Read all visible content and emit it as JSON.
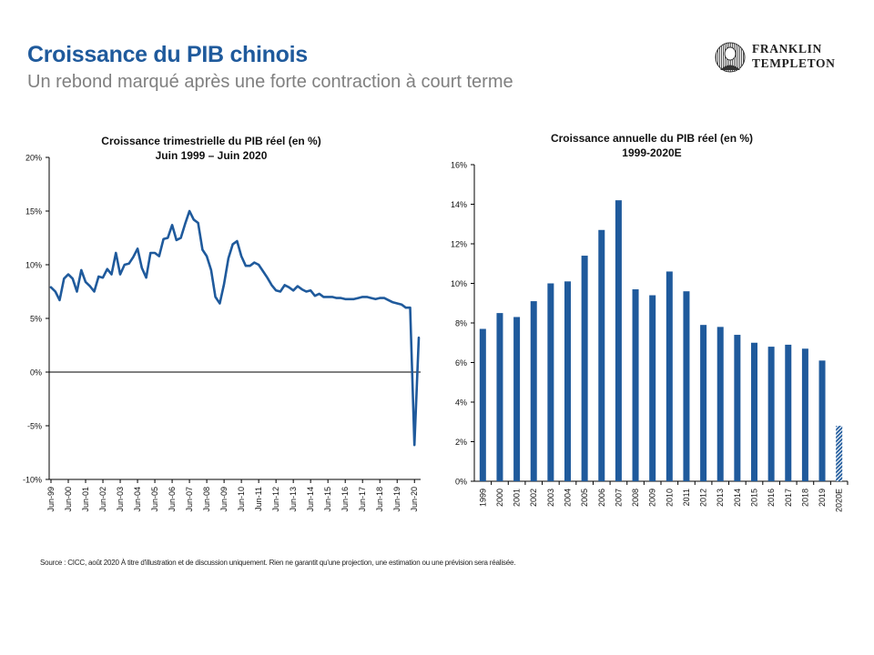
{
  "header": {
    "title": "Croissance du PIB chinois",
    "subtitle": "Un rebond marqué après une forte contraction à court terme",
    "logo_line1": "FRANKLIN",
    "logo_line2": "TEMPLETON",
    "title_color": "#1f5a9c"
  },
  "footer": {
    "source": "Source : CICC, août 2020 À titre d'illustration et de discussion uniquement. Rien ne garantit qu'une projection, une estimation ou une prévision sera réalisée."
  },
  "chart_data": [
    {
      "type": "line",
      "title_line1": "Croissance trimestrielle du PIB réel (en %)",
      "title_line2": "Juin 1999 – Juin 2020",
      "color": "#1f5a9c",
      "ylim": [
        -10,
        20
      ],
      "yticks": [
        -10,
        -5,
        0,
        5,
        10,
        15,
        20
      ],
      "ytick_labels": [
        "-10%",
        "-5%",
        "0%",
        "5%",
        "10%",
        "15%",
        "20%"
      ],
      "xtick_labels": [
        "Jun-99",
        "Jun-00",
        "Jun-01",
        "Jun-02",
        "Jun-03",
        "Jun-04",
        "Jun-05",
        "Jun-06",
        "Jun-07",
        "Jun-08",
        "Jun-09",
        "Jun-10",
        "Jun-11",
        "Jun-12",
        "Jun-13",
        "Jun-14",
        "Jun-15",
        "Jun-16",
        "Jun-17",
        "Jun-18",
        "Jun-19",
        "Jun-20"
      ],
      "values": [
        7.9,
        7.5,
        6.7,
        8.7,
        9.1,
        8.7,
        7.5,
        9.5,
        8.4,
        8.0,
        7.5,
        8.9,
        8.8,
        9.6,
        9.1,
        11.1,
        9.1,
        10.0,
        10.1,
        10.7,
        11.5,
        9.7,
        8.8,
        11.1,
        11.1,
        10.8,
        12.4,
        12.5,
        13.7,
        12.3,
        12.5,
        13.8,
        15.0,
        14.2,
        13.9,
        11.4,
        10.8,
        9.5,
        7.0,
        6.4,
        8.2,
        10.6,
        11.9,
        12.2,
        10.8,
        9.9,
        9.9,
        10.2,
        10.0,
        9.4,
        8.8,
        8.1,
        7.6,
        7.5,
        8.1,
        7.9,
        7.6,
        8.0,
        7.7,
        7.5,
        7.6,
        7.1,
        7.3,
        7.0,
        7.0,
        7.0,
        6.9,
        6.9,
        6.8,
        6.8,
        6.8,
        6.9,
        7.0,
        7.0,
        6.9,
        6.8,
        6.9,
        6.9,
        6.7,
        6.5,
        6.4,
        6.3,
        6.0,
        6.0,
        -6.8,
        3.2
      ]
    },
    {
      "type": "bar",
      "title_line1": "Croissance annuelle du PIB réel (en %)",
      "title_line2": "1999-2020E",
      "color": "#1f5a9c",
      "ylim": [
        0,
        16
      ],
      "yticks": [
        0,
        2,
        4,
        6,
        8,
        10,
        12,
        14,
        16
      ],
      "ytick_labels": [
        "0%",
        "2%",
        "4%",
        "6%",
        "8%",
        "10%",
        "12%",
        "14%",
        "16%"
      ],
      "categories": [
        "1999",
        "2000",
        "2001",
        "2002",
        "2003",
        "2004",
        "2005",
        "2006",
        "2007",
        "2008",
        "2009",
        "2010",
        "2011",
        "2012",
        "2013",
        "2014",
        "2015",
        "2016",
        "2017",
        "2018",
        "2019",
        "2020E"
      ],
      "values": [
        7.7,
        8.5,
        8.3,
        9.1,
        10.0,
        10.1,
        11.4,
        12.7,
        14.2,
        9.7,
        9.4,
        10.6,
        9.6,
        7.9,
        7.8,
        7.4,
        7.0,
        6.8,
        6.9,
        6.7,
        6.1,
        2.8
      ],
      "estimate_index": 21
    }
  ]
}
